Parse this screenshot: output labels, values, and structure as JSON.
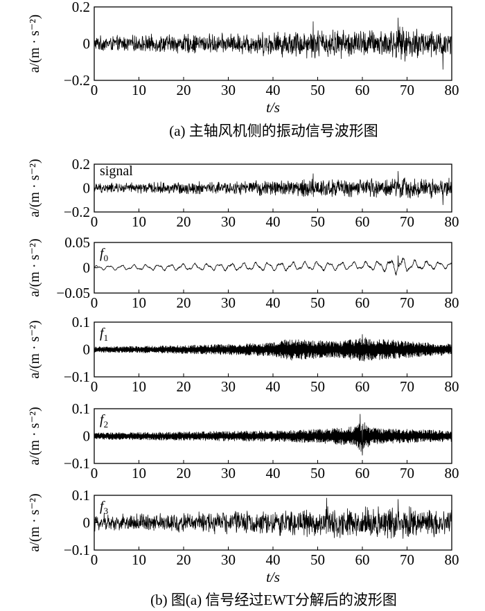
{
  "figure": {
    "caption_a": "(a) 主轴风机侧的振动信号波形图",
    "caption_b": "(b) 图(a) 信号经过EWT分解后的波形图",
    "time_axis_label": "t/s"
  },
  "chart_data": [
    {
      "id": "panel-a",
      "type": "line",
      "ylabel": "a/(m · s⁻²)",
      "xlim": [
        0,
        80
      ],
      "ylim": [
        -0.2,
        0.2
      ],
      "xticks": [
        0,
        10,
        20,
        30,
        40,
        50,
        60,
        70,
        80
      ],
      "xtick_labels": [
        "0",
        "10",
        "20",
        "30",
        "40",
        "50",
        "60",
        "70",
        "80"
      ],
      "yticks": [
        -0.2,
        0,
        0.2
      ],
      "ytick_labels": [
        "−0.2",
        "0",
        "0.2"
      ],
      "xlabel": "t/s",
      "series_label": "",
      "amplitude_envelope": {
        "t": [
          0,
          10,
          20,
          30,
          40,
          50,
          60,
          70,
          80
        ],
        "amp": [
          0.045,
          0.05,
          0.06,
          0.06,
          0.075,
          0.09,
          0.085,
          0.1,
          0.09
        ]
      },
      "peaks": {
        "t": [
          49,
          68,
          78
        ],
        "values": [
          0.12,
          0.14,
          -0.14
        ]
      }
    },
    {
      "id": "panel-signal",
      "type": "line",
      "ylabel": "a/(m · s⁻²)",
      "xlim": [
        0,
        80
      ],
      "ylim": [
        -0.2,
        0.2
      ],
      "xticks": [
        0,
        10,
        20,
        30,
        40,
        50,
        60,
        70,
        80
      ],
      "xtick_labels": [
        "0",
        "10",
        "20",
        "30",
        "40",
        "50",
        "60",
        "70",
        "80"
      ],
      "yticks": [
        -0.2,
        0,
        0.2
      ],
      "ytick_labels": [
        "−0.2",
        "0",
        "0.2"
      ],
      "series_label": "signal",
      "amplitude_envelope": {
        "t": [
          0,
          10,
          20,
          30,
          40,
          50,
          60,
          70,
          80
        ],
        "amp": [
          0.045,
          0.05,
          0.06,
          0.06,
          0.075,
          0.09,
          0.085,
          0.1,
          0.09
        ]
      },
      "peaks": {
        "t": [
          49,
          68,
          78
        ],
        "values": [
          0.12,
          0.14,
          -0.14
        ]
      }
    },
    {
      "id": "panel-f0",
      "type": "line",
      "ylabel": "a/(m · s⁻²)",
      "xlim": [
        0,
        80
      ],
      "ylim": [
        -0.05,
        0.05
      ],
      "xticks": [
        0,
        10,
        20,
        30,
        40,
        50,
        60,
        70,
        80
      ],
      "xtick_labels": [
        "0",
        "10",
        "20",
        "30",
        "40",
        "50",
        "60",
        "70",
        "80"
      ],
      "yticks": [
        -0.05,
        0,
        0.05
      ],
      "ytick_labels": [
        "−0.05",
        "0",
        "0.05"
      ],
      "series_label": "f",
      "series_subscript": "0",
      "amplitude_envelope": {
        "t": [
          0,
          10,
          20,
          30,
          40,
          50,
          60,
          65,
          68,
          72,
          80
        ],
        "amp": [
          0.004,
          0.005,
          0.006,
          0.007,
          0.008,
          0.008,
          0.007,
          0.01,
          0.016,
          0.009,
          0.006
        ]
      },
      "peaks": {
        "t": [
          68
        ],
        "values": [
          0.024
        ]
      }
    },
    {
      "id": "panel-f1",
      "type": "line",
      "ylabel": "a/(m · s⁻²)",
      "xlim": [
        0,
        80
      ],
      "ylim": [
        -0.1,
        0.1
      ],
      "xticks": [
        0,
        10,
        20,
        30,
        40,
        50,
        60,
        70,
        80
      ],
      "xtick_labels": [
        "0",
        "10",
        "20",
        "30",
        "40",
        "50",
        "60",
        "70",
        "80"
      ],
      "yticks": [
        -0.1,
        0,
        0.1
      ],
      "ytick_labels": [
        "−0.1",
        "0",
        "0.1"
      ],
      "series_label": "f",
      "series_subscript": "1",
      "amplitude_envelope": {
        "t": [
          0,
          10,
          20,
          30,
          40,
          44,
          48,
          55,
          60,
          70,
          80
        ],
        "amp": [
          0.01,
          0.012,
          0.015,
          0.02,
          0.025,
          0.04,
          0.035,
          0.03,
          0.045,
          0.03,
          0.02
        ]
      },
      "peaks": {
        "t": [
          60
        ],
        "values": [
          0.055
        ]
      }
    },
    {
      "id": "panel-f2",
      "type": "line",
      "ylabel": "a/(m · s⁻²)",
      "xlim": [
        0,
        80
      ],
      "ylim": [
        -0.1,
        0.1
      ],
      "xticks": [
        0,
        10,
        20,
        30,
        40,
        50,
        60,
        70,
        80
      ],
      "xtick_labels": [
        "0",
        "10",
        "20",
        "30",
        "40",
        "50",
        "60",
        "70",
        "80"
      ],
      "yticks": [
        -0.1,
        0,
        0.1
      ],
      "ytick_labels": [
        "−0.1",
        "0",
        "0.1"
      ],
      "series_label": "f",
      "series_subscript": "2",
      "amplitude_envelope": {
        "t": [
          0,
          10,
          20,
          30,
          40,
          50,
          58,
          60,
          62,
          70,
          80
        ],
        "amp": [
          0.012,
          0.014,
          0.016,
          0.018,
          0.02,
          0.025,
          0.035,
          0.06,
          0.03,
          0.025,
          0.02
        ]
      },
      "peaks": {
        "t": [
          59.5,
          60
        ],
        "values": [
          0.08,
          -0.07
        ]
      }
    },
    {
      "id": "panel-f3",
      "type": "line",
      "ylabel": "a/(m · s⁻²)",
      "xlim": [
        0,
        80
      ],
      "ylim": [
        -0.1,
        0.1
      ],
      "xticks": [
        0,
        10,
        20,
        30,
        40,
        50,
        60,
        70,
        80
      ],
      "xtick_labels": [
        "0",
        "10",
        "20",
        "30",
        "40",
        "50",
        "60",
        "70",
        "80"
      ],
      "yticks": [
        -0.1,
        0,
        0.1
      ],
      "ytick_labels": [
        "−0.1",
        "0",
        "0.1"
      ],
      "xlabel": "t/s",
      "series_label": "f",
      "series_subscript": "3",
      "amplitude_envelope": {
        "t": [
          0,
          10,
          20,
          30,
          40,
          50,
          60,
          70,
          80
        ],
        "amp": [
          0.035,
          0.038,
          0.04,
          0.045,
          0.05,
          0.06,
          0.06,
          0.065,
          0.05
        ]
      },
      "peaks": {
        "t": [
          52,
          68
        ],
        "values": [
          0.09,
          0.085
        ]
      }
    }
  ]
}
